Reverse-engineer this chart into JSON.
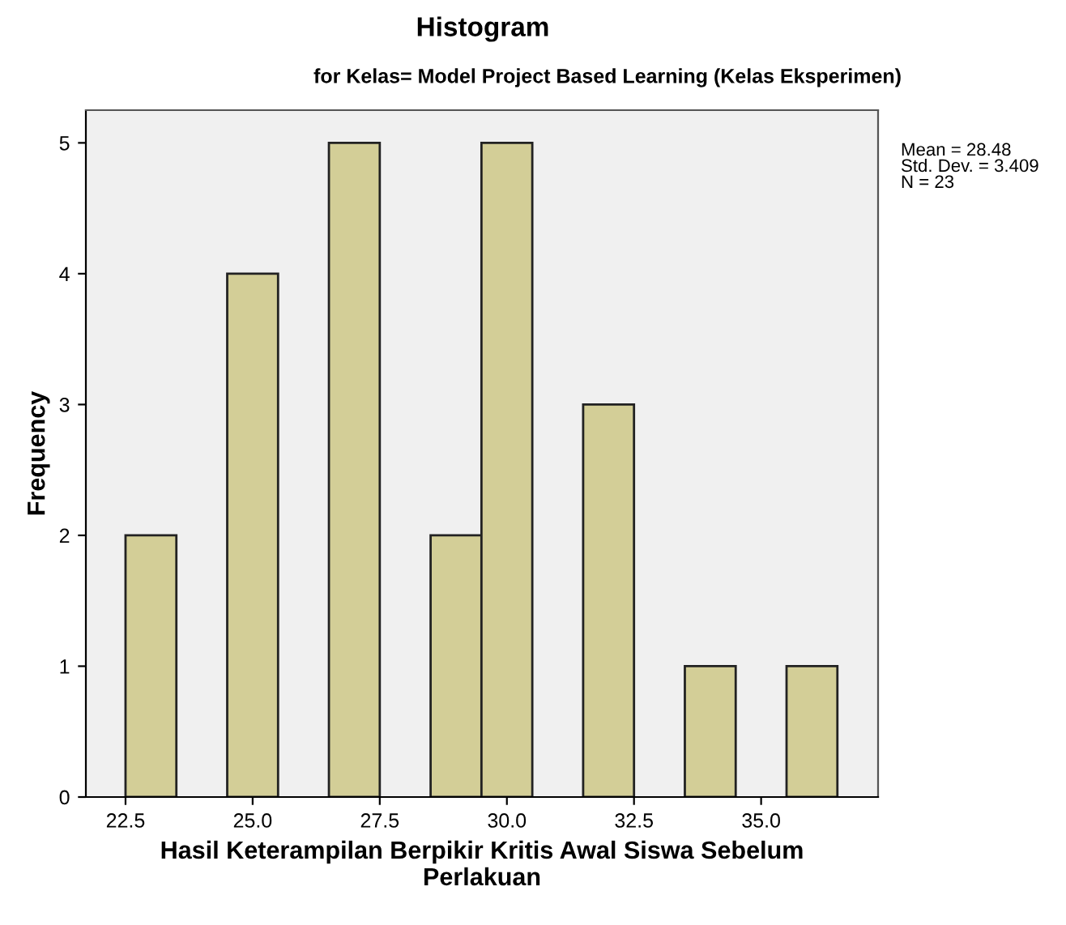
{
  "chart_data": {
    "type": "histogram",
    "title": "Histogram",
    "subtitle": "for Kelas= Model Project Based Learning (Kelas Eksperimen)",
    "xlabel": "Hasil Keterampilan Berpikir Kritis Awal Siswa Sebelum\nPerlakuan",
    "ylabel": "Frequency",
    "bins": [
      22.5,
      23.5,
      24.5,
      25.5,
      26.5,
      27.5,
      28.5,
      29.5,
      30.5,
      31.5,
      32.5,
      33.5,
      34.5,
      35.5,
      36.5
    ],
    "values": [
      2,
      0,
      4,
      0,
      5,
      0,
      2,
      5,
      0,
      3,
      0,
      1,
      0,
      1
    ],
    "color": "#d3ce97",
    "xlim": [
      21.72,
      37.3
    ],
    "ylim": [
      0,
      5.25
    ],
    "xticks": [
      {
        "value": 22.5,
        "label": "22.5"
      },
      {
        "value": 25,
        "label": "25.0"
      },
      {
        "value": 27.5,
        "label": "27.5"
      },
      {
        "value": 30,
        "label": "30.0"
      },
      {
        "value": 32.5,
        "label": "32.5"
      },
      {
        "value": 35,
        "label": "35.0"
      }
    ],
    "yticks": [
      0,
      1,
      2,
      3,
      4,
      5
    ],
    "grid": false,
    "annotations": [
      "Mean = 28.48\nStd. Dev. = 3.409\nN = 23"
    ]
  }
}
